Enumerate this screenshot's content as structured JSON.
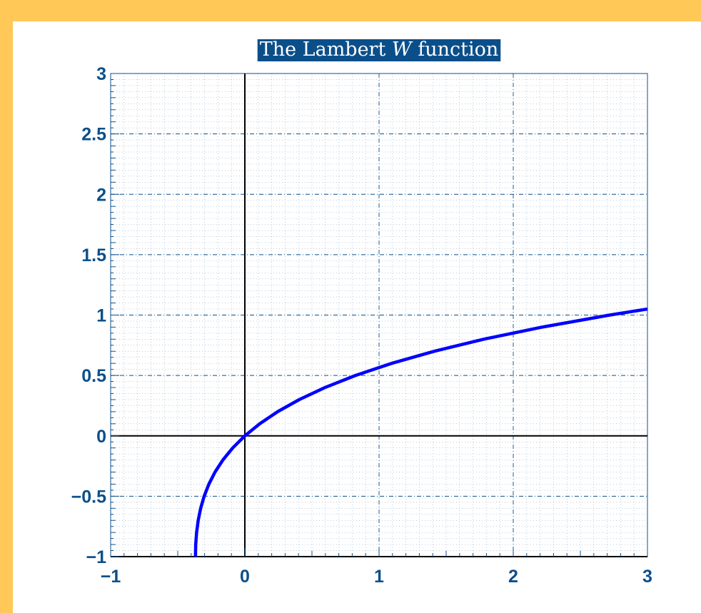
{
  "colors": {
    "page_background": "#FFC857",
    "plot_background": "#FFFFFF",
    "tick_label": "#0B4F8A",
    "grid": "#0B4F8A",
    "axis_line": "#000000",
    "curve": "#0000FF",
    "title_background": "#0B4F8A",
    "title_text": "#FFFFFF"
  },
  "chart_data": {
    "type": "line",
    "title_parts": [
      "The Lambert ",
      "W",
      " function"
    ],
    "xlabel": "",
    "ylabel": "",
    "xlim": [
      -1,
      3
    ],
    "ylim": [
      -1,
      3
    ],
    "x_ticks": [
      {
        "value": -1,
        "label": "−1"
      },
      {
        "value": 0,
        "label": "0"
      },
      {
        "value": 1,
        "label": "1"
      },
      {
        "value": 2,
        "label": "2"
      },
      {
        "value": 3,
        "label": "3"
      }
    ],
    "y_ticks": [
      {
        "value": -1,
        "label": "−1"
      },
      {
        "value": -0.5,
        "label": "−0.5"
      },
      {
        "value": 0,
        "label": "0"
      },
      {
        "value": 0.5,
        "label": "0.5"
      },
      {
        "value": 1,
        "label": "1"
      },
      {
        "value": 1.5,
        "label": "1.5"
      },
      {
        "value": 2,
        "label": "2"
      },
      {
        "value": 2.5,
        "label": "2.5"
      },
      {
        "value": 3,
        "label": "3"
      }
    ],
    "grid": true,
    "minor_grid": true,
    "series": [
      {
        "values": [
          [
            -0.3679,
            -1.0
          ],
          [
            -0.3661,
            -0.9
          ],
          [
            -0.3595,
            -0.8
          ],
          [
            -0.3476,
            -0.7
          ],
          [
            -0.3293,
            -0.6
          ],
          [
            -0.3033,
            -0.5
          ],
          [
            -0.2681,
            -0.4
          ],
          [
            -0.2222,
            -0.3
          ],
          [
            -0.1637,
            -0.2
          ],
          [
            -0.0905,
            -0.1
          ],
          [
            0.0,
            0.0
          ],
          [
            0.1105,
            0.1
          ],
          [
            0.2443,
            0.2
          ],
          [
            0.4049,
            0.3
          ],
          [
            0.5967,
            0.4
          ],
          [
            0.8244,
            0.5
          ],
          [
            1.0933,
            0.6
          ],
          [
            1.4096,
            0.7
          ],
          [
            1.7804,
            0.8
          ],
          [
            2.2136,
            0.9
          ],
          [
            2.7183,
            1.0
          ],
          [
            3.0,
            1.0499
          ]
        ]
      }
    ]
  }
}
